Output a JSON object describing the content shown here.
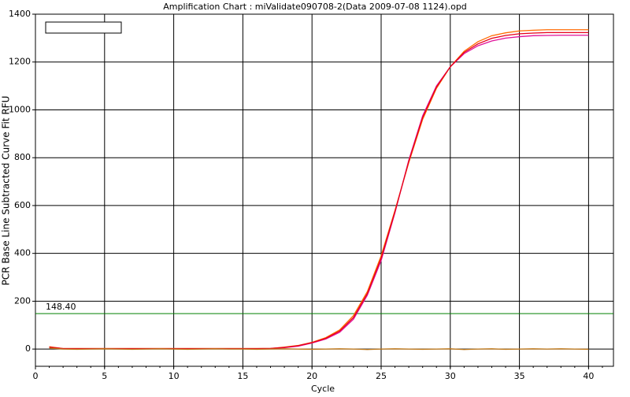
{
  "chart_data": {
    "type": "line",
    "title": "Amplification Chart : miValidate090708-2(Data 2009-07-08 1124).opd",
    "xlabel": "Cycle",
    "ylabel": "PCR Base Line Subtracted Curve Fit RFU",
    "x": [
      1,
      2,
      3,
      4,
      5,
      6,
      7,
      8,
      9,
      10,
      11,
      12,
      13,
      14,
      15,
      16,
      17,
      18,
      19,
      20,
      21,
      22,
      23,
      24,
      25,
      26,
      27,
      28,
      29,
      30,
      31,
      32,
      33,
      34,
      35,
      36,
      37,
      38,
      39,
      40
    ],
    "series": [
      {
        "color": "#ff6a00",
        "values": [
          10,
          2,
          2,
          2,
          2,
          2,
          2,
          2,
          2,
          2,
          2,
          2,
          2,
          2,
          2,
          2,
          2,
          8,
          15,
          28,
          48,
          80,
          140,
          240,
          390,
          580,
          780,
          960,
          1090,
          1180,
          1245,
          1285,
          1310,
          1322,
          1330,
          1333,
          1335,
          1335,
          1335,
          1335
        ]
      },
      {
        "color": "#e0109a",
        "values": [
          6,
          1,
          1,
          1,
          1,
          1,
          1,
          1,
          1,
          1,
          1,
          1,
          1,
          1,
          1,
          1,
          1,
          6,
          12,
          25,
          42,
          70,
          125,
          225,
          370,
          570,
          790,
          975,
          1100,
          1180,
          1235,
          1268,
          1288,
          1300,
          1306,
          1310,
          1311,
          1312,
          1312,
          1312
        ]
      },
      {
        "color": "#e6001a",
        "values": [
          8,
          2,
          2,
          2,
          2,
          2,
          2,
          2,
          2,
          2,
          2,
          2,
          2,
          2,
          2,
          2,
          3,
          7,
          14,
          27,
          45,
          75,
          132,
          232,
          380,
          575,
          785,
          968,
          1095,
          1180,
          1240,
          1276,
          1299,
          1311,
          1318,
          1321,
          1323,
          1323,
          1323,
          1323
        ]
      },
      {
        "color": "#c07818",
        "values": [
          4,
          0,
          -1,
          0,
          1,
          0,
          -1,
          0,
          1,
          0,
          -1,
          0,
          1,
          0,
          0,
          -1,
          0,
          1,
          0,
          -1,
          0,
          1,
          0,
          -2,
          0,
          1,
          0,
          -1,
          0,
          1,
          -2,
          0,
          1,
          -1,
          0,
          1,
          0,
          1,
          0,
          -1
        ]
      }
    ],
    "threshold": {
      "value": 148.4,
      "label": "148.40",
      "color": "#008000"
    },
    "xlim": [
      0,
      41.8
    ],
    "ylim": [
      -72,
      1400
    ],
    "xticks": [
      0,
      5,
      10,
      15,
      20,
      25,
      30,
      35,
      40
    ],
    "yticks": [
      0,
      200,
      400,
      600,
      800,
      1000,
      1200,
      1400
    ],
    "grid": true
  }
}
